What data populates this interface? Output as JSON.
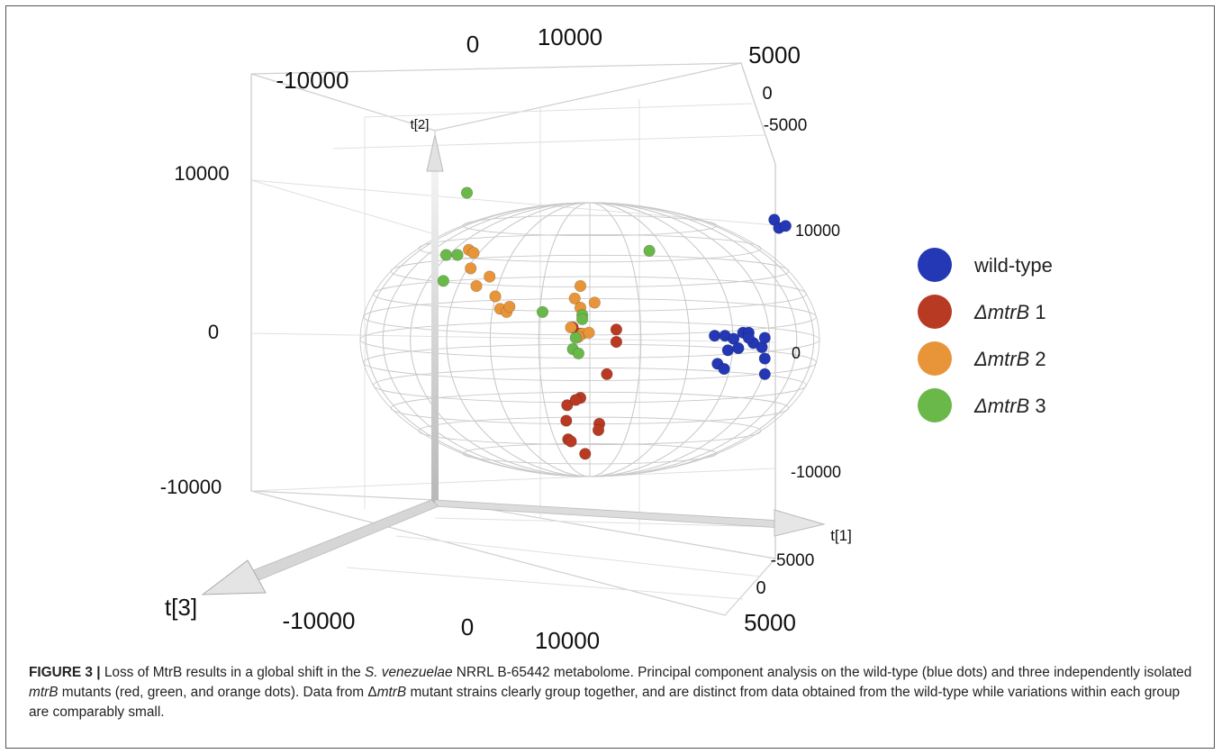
{
  "chart_data": {
    "type": "scatter",
    "title": "",
    "axes": {
      "t1": {
        "label": "t[1]",
        "ticks": [
          "10000",
          "0",
          "-10000"
        ],
        "tick_values": [
          10000,
          0,
          -10000
        ]
      },
      "t2": {
        "label": "t[2]",
        "ticks_left": [
          "10000",
          "0",
          "-10000"
        ],
        "ticks_right": [
          "10000",
          "0",
          "-10000"
        ],
        "tick_values": [
          10000,
          0,
          -10000
        ]
      },
      "t3": {
        "label": "t[3]",
        "ticks_top": [
          "5000",
          "0",
          "-5000"
        ],
        "ticks_bottom": [
          "-5000",
          "0",
          "5000"
        ],
        "tick_values": [
          5000,
          0,
          -5000
        ]
      },
      "top_x_ticks": [
        "-10000",
        "0",
        "10000"
      ],
      "bottom_x_ticks": [
        "-10000",
        "0",
        "10000"
      ]
    },
    "legend": {
      "placement": "right",
      "entries": [
        {
          "prefix": "",
          "italic": "",
          "text": "wild-type",
          "color": "#2438b5"
        },
        {
          "prefix": "Δ",
          "italic": "mtrB",
          "text": " 1",
          "color": "#b83a22"
        },
        {
          "prefix": "Δ",
          "italic": "mtrB",
          "text": " 2",
          "color": "#e8953a"
        },
        {
          "prefix": "Δ",
          "italic": "mtrB",
          "text": " 3",
          "color": "#6ab84a"
        }
      ]
    },
    "series": [
      {
        "name": "wild-type",
        "color": "#2438b5",
        "points": [
          [
            19500,
            11400
          ],
          [
            20000,
            10600
          ],
          [
            20700,
            10800
          ],
          [
            13200,
            200
          ],
          [
            14300,
            200
          ],
          [
            15200,
            -100
          ],
          [
            16200,
            500
          ],
          [
            16800,
            500
          ],
          [
            17300,
            -500
          ],
          [
            18200,
            -900
          ],
          [
            14600,
            -1200
          ],
          [
            15700,
            -1000
          ],
          [
            16800,
            0
          ],
          [
            18500,
            0
          ],
          [
            13500,
            -2500
          ],
          [
            14200,
            -3000
          ],
          [
            18500,
            -2000
          ],
          [
            18500,
            -3500
          ]
        ]
      },
      {
        "name": "ΔmtrB 1",
        "color": "#b83a22",
        "points": [
          [
            -1800,
            1000
          ],
          [
            -1000,
            400
          ],
          [
            2800,
            800
          ],
          [
            2800,
            -400
          ],
          [
            1800,
            -3500
          ],
          [
            -1000,
            -5800
          ],
          [
            -2400,
            -6500
          ],
          [
            -1500,
            -6000
          ],
          [
            -2500,
            -8000
          ],
          [
            -2300,
            -9800
          ],
          [
            -2000,
            -10000
          ],
          [
            -500,
            -11200
          ],
          [
            1000,
            -8300
          ],
          [
            900,
            -8900
          ]
        ]
      },
      {
        "name": "ΔmtrB 2",
        "color": "#e8953a",
        "points": [
          [
            -12800,
            8500
          ],
          [
            -12300,
            8200
          ],
          [
            -12600,
            6700
          ],
          [
            -10600,
            5900
          ],
          [
            -12000,
            5000
          ],
          [
            -10000,
            4000
          ],
          [
            -9500,
            2800
          ],
          [
            -8800,
            2500
          ],
          [
            -8500,
            3000
          ],
          [
            -1000,
            5000
          ],
          [
            -1600,
            3800
          ],
          [
            500,
            3400
          ],
          [
            -1000,
            2900
          ],
          [
            -2000,
            1000
          ],
          [
            -800,
            400
          ],
          [
            -100,
            500
          ],
          [
            -1200,
            100
          ]
        ]
      },
      {
        "name": "ΔmtrB 3",
        "color": "#6ab84a",
        "points": [
          [
            -13000,
            14000
          ],
          [
            -15200,
            8000
          ],
          [
            -14000,
            8000
          ],
          [
            -15500,
            5500
          ],
          [
            -5000,
            2500
          ],
          [
            -800,
            2200
          ],
          [
            -1500,
            0
          ],
          [
            -1800,
            -1100
          ],
          [
            -1200,
            -1500
          ],
          [
            6300,
            8400
          ],
          [
            -800,
            1800
          ]
        ]
      }
    ]
  },
  "caption": {
    "label": "FIGURE 3 |",
    "s1_a": " Loss of MtrB results in a global shift in the ",
    "s1_b": "S. venezuelae",
    "s1_c": " NRRL B-65442 metabolome. Principal component analysis on the wild-type (blue dots) and three independently isolated ",
    "s1_d": "mtrB",
    "s1_e": " mutants (red, green, and orange dots). Data from ",
    "s1_f": "Δ",
    "s1_g": "mtrB",
    "s1_h": " mutant strains clearly group together, and are distinct from data obtained from the wild-type while variations within each group are comparably small."
  }
}
